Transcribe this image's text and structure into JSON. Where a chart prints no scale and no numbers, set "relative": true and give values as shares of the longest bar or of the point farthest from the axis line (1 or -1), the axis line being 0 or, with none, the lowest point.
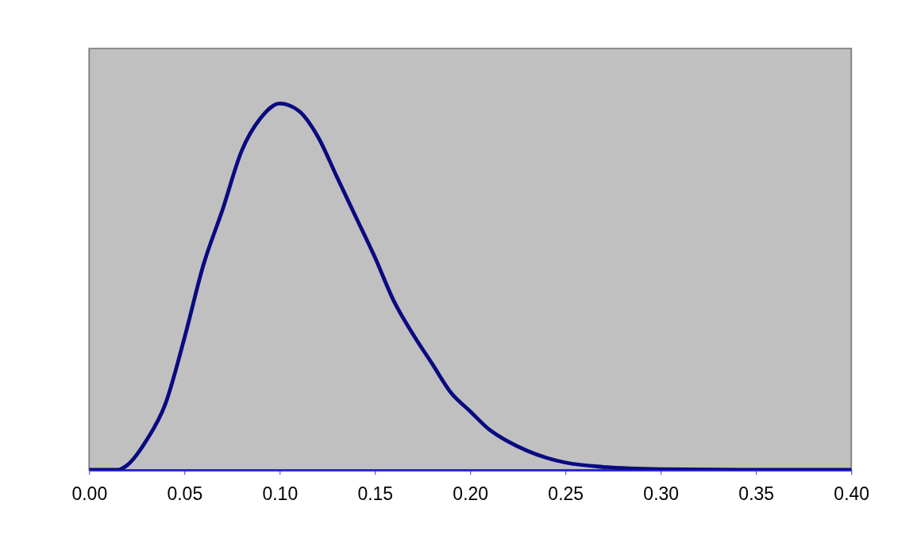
{
  "chart_data": {
    "type": "line",
    "relative": true,
    "grid": false,
    "marker": "none",
    "line_style": "solid",
    "xlim": [
      0,
      0.4
    ],
    "xticks": [
      {
        "value": 0,
        "label": "0.00"
      },
      {
        "value": 0.05,
        "label": "0.05"
      },
      {
        "value": 0.1,
        "label": "0.10"
      },
      {
        "value": 0.15,
        "label": "0.15"
      },
      {
        "value": 0.2,
        "label": "0.20"
      },
      {
        "value": 0.25,
        "label": "0.25"
      },
      {
        "value": 0.3,
        "label": "0.30"
      },
      {
        "value": 0.35,
        "label": "0.35"
      },
      {
        "value": 0.4,
        "label": "0.40"
      }
    ],
    "x": [
      0,
      0.01,
      0.015,
      0.02,
      0.03,
      0.04,
      0.05,
      0.06,
      0.07,
      0.08,
      0.09,
      0.1,
      0.11,
      0.12,
      0.13,
      0.14,
      0.15,
      0.16,
      0.17,
      0.18,
      0.19,
      0.2,
      0.21,
      0.22,
      0.23,
      0.24,
      0.25,
      0.27,
      0.3,
      0.35,
      0.4
    ],
    "series": [
      {
        "color": "#0a0a80",
        "values": [
          0,
          0,
          0,
          0.013,
          0.08,
          0.18,
          0.36,
          0.56,
          0.71,
          0.87,
          0.96,
          1.0,
          0.98,
          0.91,
          0.8,
          0.69,
          0.58,
          0.46,
          0.37,
          0.29,
          0.21,
          0.16,
          0.11,
          0.077,
          0.052,
          0.033,
          0.02,
          0.008,
          0.002,
          0,
          0
        ]
      }
    ]
  }
}
